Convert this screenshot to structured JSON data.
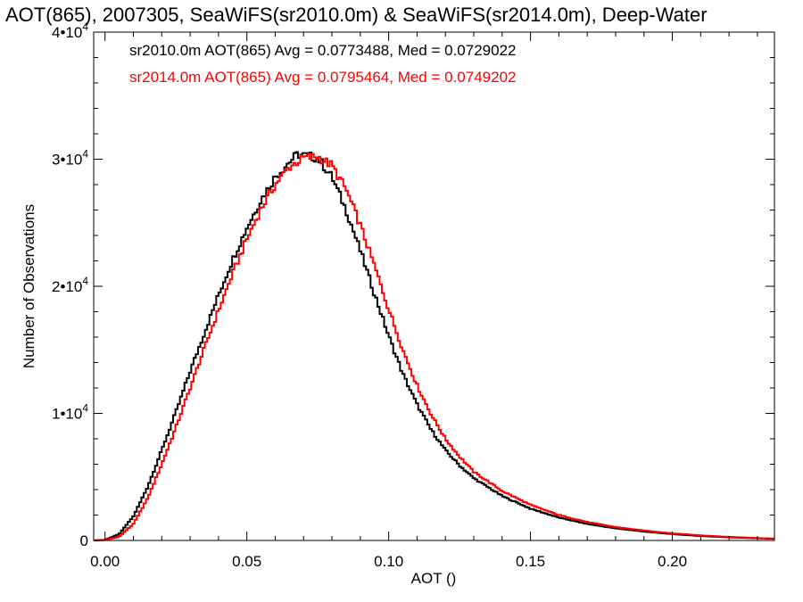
{
  "chart_data": {
    "type": "histogram",
    "title": "AOT(865), 2007305, SeaWiFS(sr2010.0m) & SeaWiFS(sr2014.0m), Deep-Water",
    "xlabel": "AOT ()",
    "ylabel": "Number of Observations",
    "xlim": [
      -0.004,
      0.236
    ],
    "ylim": [
      0,
      40000
    ],
    "x_ticks": [
      {
        "value": 0.0,
        "label": "0.00"
      },
      {
        "value": 0.05,
        "label": "0.05"
      },
      {
        "value": 0.1,
        "label": "0.10"
      },
      {
        "value": 0.15,
        "label": "0.15"
      },
      {
        "value": 0.2,
        "label": "0.20"
      }
    ],
    "y_ticks": [
      {
        "value": 0,
        "mant": "0",
        "exp": ""
      },
      {
        "value": 10000,
        "mant": "1•",
        "exp": "4"
      },
      {
        "value": 20000,
        "mant": "2•",
        "exp": "4"
      },
      {
        "value": 30000,
        "mant": "3•",
        "exp": "4"
      },
      {
        "value": 40000,
        "mant": "4•",
        "exp": "4"
      }
    ],
    "series": [
      {
        "legend": "sr2010.0m AOT(865) Avg = 0.0773488, Med = 0.0729022",
        "color": "#000000",
        "points": [
          [
            -0.004,
            0
          ],
          [
            0.0,
            50
          ],
          [
            0.005,
            500
          ],
          [
            0.01,
            1900
          ],
          [
            0.015,
            4200
          ],
          [
            0.02,
            7100
          ],
          [
            0.025,
            10100
          ],
          [
            0.03,
            13300
          ],
          [
            0.035,
            16300
          ],
          [
            0.04,
            19300
          ],
          [
            0.045,
            22100
          ],
          [
            0.05,
            24600
          ],
          [
            0.055,
            26800
          ],
          [
            0.06,
            28600
          ],
          [
            0.065,
            29800
          ],
          [
            0.068,
            30400
          ],
          [
            0.07,
            30300
          ],
          [
            0.075,
            30100
          ],
          [
            0.08,
            28600
          ],
          [
            0.085,
            26000
          ],
          [
            0.09,
            22800
          ],
          [
            0.095,
            19400
          ],
          [
            0.1,
            16100
          ],
          [
            0.105,
            13100
          ],
          [
            0.11,
            10700
          ],
          [
            0.115,
            8700
          ],
          [
            0.12,
            7100
          ],
          [
            0.125,
            5900
          ],
          [
            0.13,
            4900
          ],
          [
            0.14,
            3500
          ],
          [
            0.15,
            2500
          ],
          [
            0.16,
            1800
          ],
          [
            0.17,
            1300
          ],
          [
            0.18,
            950
          ],
          [
            0.19,
            700
          ],
          [
            0.2,
            500
          ],
          [
            0.21,
            350
          ],
          [
            0.22,
            250
          ],
          [
            0.23,
            170
          ],
          [
            0.236,
            130
          ]
        ]
      },
      {
        "legend": "sr2014.0m AOT(865) Avg = 0.0795464, Med = 0.0749202",
        "color": "#ff0000",
        "points": [
          [
            -0.004,
            0
          ],
          [
            0.0,
            30
          ],
          [
            0.005,
            300
          ],
          [
            0.01,
            1300
          ],
          [
            0.015,
            3300
          ],
          [
            0.02,
            6000
          ],
          [
            0.025,
            8900
          ],
          [
            0.03,
            12000
          ],
          [
            0.035,
            15100
          ],
          [
            0.04,
            18100
          ],
          [
            0.045,
            21000
          ],
          [
            0.05,
            23700
          ],
          [
            0.055,
            26100
          ],
          [
            0.06,
            28000
          ],
          [
            0.065,
            29400
          ],
          [
            0.07,
            30100
          ],
          [
            0.075,
            30200
          ],
          [
            0.08,
            29500
          ],
          [
            0.085,
            27600
          ],
          [
            0.09,
            24800
          ],
          [
            0.095,
            21600
          ],
          [
            0.1,
            18200
          ],
          [
            0.105,
            15000
          ],
          [
            0.11,
            12200
          ],
          [
            0.115,
            9900
          ],
          [
            0.12,
            8000
          ],
          [
            0.125,
            6600
          ],
          [
            0.13,
            5400
          ],
          [
            0.14,
            3900
          ],
          [
            0.15,
            2800
          ],
          [
            0.16,
            2000
          ],
          [
            0.17,
            1450
          ],
          [
            0.18,
            1050
          ],
          [
            0.19,
            780
          ],
          [
            0.2,
            560
          ],
          [
            0.21,
            400
          ],
          [
            0.22,
            280
          ],
          [
            0.23,
            190
          ],
          [
            0.236,
            150
          ]
        ]
      }
    ]
  }
}
